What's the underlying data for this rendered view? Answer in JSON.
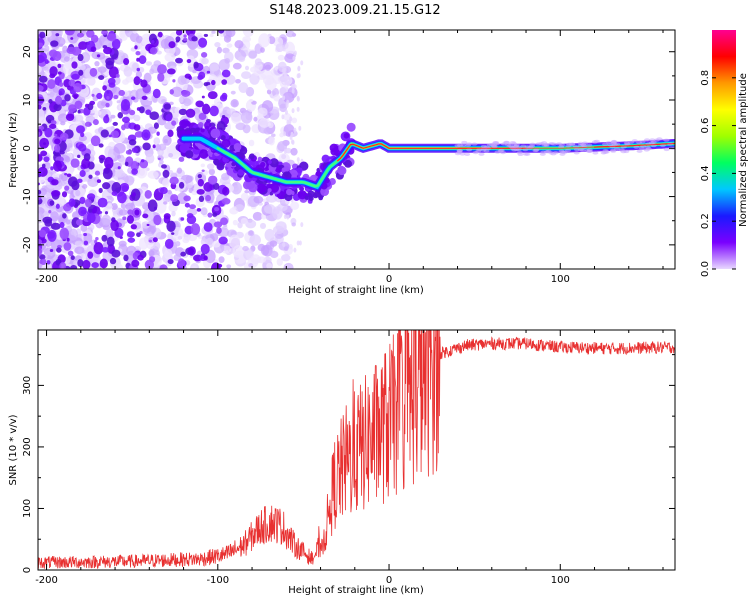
{
  "title": "S148.2023.009.21.15.G12",
  "colors": {
    "snr_line": "#e83030",
    "frame": "#000000"
  },
  "chart_data": [
    {
      "type": "heatmap",
      "name": "spectrogram",
      "xlabel": "Height of straight line (km)",
      "ylabel": "Frequency (Hz)",
      "xlim": [
        -205,
        167
      ],
      "ylim": [
        -25,
        24.5
      ],
      "xticks": [
        -200,
        -100,
        0,
        100
      ],
      "yticks": [
        -20,
        -10,
        0,
        10,
        20
      ],
      "colorbar": {
        "label": "Normalized spectral amplitude",
        "range": [
          0,
          1
        ],
        "ticks": [
          "0.0",
          "0.2",
          "0.4",
          "0.6",
          "0.8"
        ],
        "tick_values": [
          0.0,
          0.2,
          0.4,
          0.6,
          0.8
        ],
        "colormap": [
          "#e8d8ff",
          "#7a00ff",
          "#1a1aff",
          "#00c8ff",
          "#00ff60",
          "#a0ff00",
          "#ffff00",
          "#ff9900",
          "#ff0000",
          "#ff0090"
        ]
      },
      "ridge": [
        [
          -120,
          2
        ],
        [
          -110,
          2
        ],
        [
          -100,
          0
        ],
        [
          -90,
          -2
        ],
        [
          -80,
          -5
        ],
        [
          -70,
          -6
        ],
        [
          -60,
          -7
        ],
        [
          -50,
          -7
        ],
        [
          -42,
          -8
        ],
        [
          -35,
          -4
        ],
        [
          -28,
          -2
        ],
        [
          -22,
          1
        ],
        [
          -15,
          0
        ],
        [
          -5,
          1
        ],
        [
          0,
          0
        ],
        [
          20,
          0
        ],
        [
          60,
          0
        ],
        [
          100,
          0
        ],
        [
          140,
          0.5
        ],
        [
          167,
          1
        ]
      ]
    },
    {
      "type": "line",
      "name": "snr",
      "xlabel": "Height of straight line (km)",
      "ylabel": "SNR (10 * v/v)",
      "xlim": [
        -205,
        167
      ],
      "ylim": [
        0,
        390
      ],
      "xticks": [
        -200,
        -100,
        0,
        100
      ],
      "yticks": [
        0,
        100,
        200,
        300
      ],
      "envelope": [
        [
          -205,
          12
        ],
        [
          -150,
          14
        ],
        [
          -110,
          18
        ],
        [
          -95,
          25
        ],
        [
          -85,
          40
        ],
        [
          -75,
          70
        ],
        [
          -68,
          78
        ],
        [
          -62,
          70
        ],
        [
          -55,
          40
        ],
        [
          -45,
          18
        ],
        [
          -38,
          50
        ],
        [
          -32,
          140
        ],
        [
          -25,
          175
        ],
        [
          -18,
          195
        ],
        [
          -10,
          215
        ],
        [
          0,
          240
        ],
        [
          10,
          270
        ],
        [
          20,
          320
        ],
        [
          30,
          352
        ],
        [
          45,
          365
        ],
        [
          60,
          368
        ],
        [
          80,
          368
        ],
        [
          100,
          362
        ],
        [
          130,
          360
        ],
        [
          167,
          362
        ]
      ]
    }
  ]
}
